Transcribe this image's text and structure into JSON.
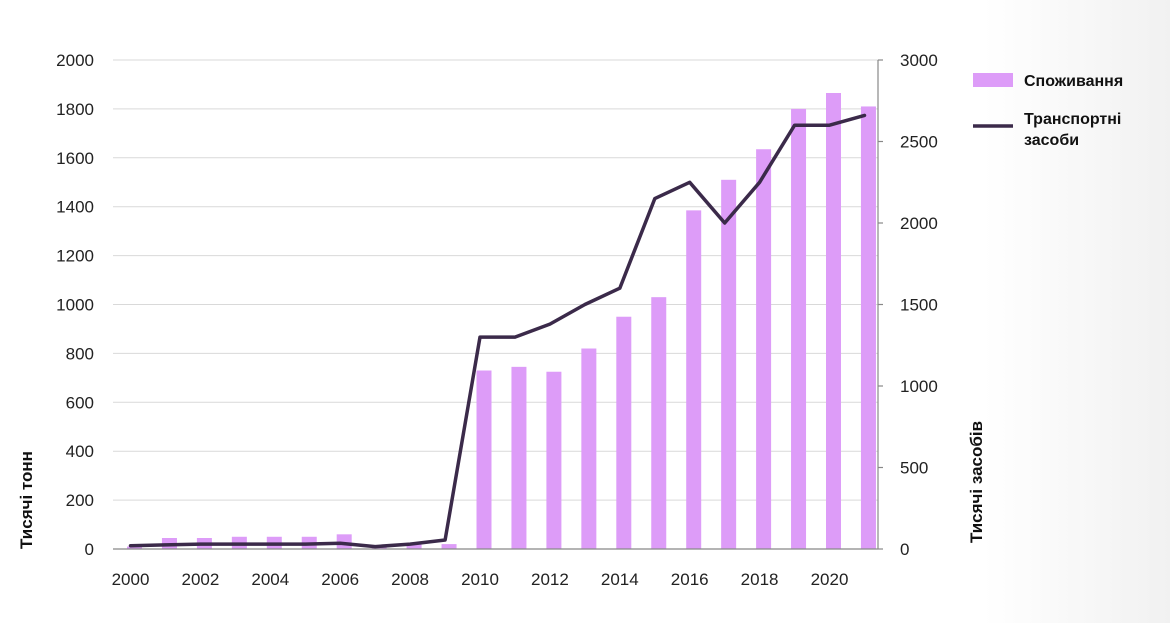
{
  "chart_data": {
    "type": "bar+line",
    "x": [
      2000,
      2001,
      2002,
      2003,
      2004,
      2005,
      2006,
      2007,
      2008,
      2009,
      2010,
      2011,
      2012,
      2013,
      2014,
      2015,
      2016,
      2017,
      2018,
      2019,
      2020,
      2021
    ],
    "x_tick_labels": [
      "2000",
      "2002",
      "2004",
      "2006",
      "2008",
      "2010",
      "2012",
      "2014",
      "2016",
      "2018",
      "2020"
    ],
    "series": [
      {
        "name": "Споживання",
        "kind": "bar",
        "axis": "left",
        "color": "#dd9cf8",
        "values": [
          10,
          45,
          45,
          50,
          50,
          50,
          60,
          15,
          20,
          20,
          730,
          745,
          725,
          820,
          950,
          1030,
          1385,
          1510,
          1635,
          1800,
          1865,
          1810
        ]
      },
      {
        "name": "Транспортні засоби",
        "kind": "line",
        "axis": "right",
        "color": "#3b2a4a",
        "values": [
          20,
          25,
          30,
          30,
          30,
          30,
          35,
          15,
          30,
          55,
          1300,
          1300,
          1380,
          1500,
          1600,
          2150,
          2250,
          2000,
          2250,
          2600,
          2600,
          2660
        ]
      }
    ],
    "y_left": {
      "label": "Тисячі тонн",
      "range": [
        0,
        2000
      ],
      "ticks": [
        0,
        200,
        400,
        600,
        800,
        1000,
        1200,
        1400,
        1600,
        1800,
        2000
      ]
    },
    "y_right": {
      "label": "Тисячі засобів",
      "range": [
        0,
        3000
      ],
      "ticks": [
        0,
        500,
        1000,
        1500,
        2000,
        2500,
        3000
      ]
    },
    "grid": true,
    "legend_position": "top-right",
    "legend_lines": [
      [
        "Споживання"
      ],
      [
        "Транспортні",
        "засоби"
      ]
    ]
  }
}
